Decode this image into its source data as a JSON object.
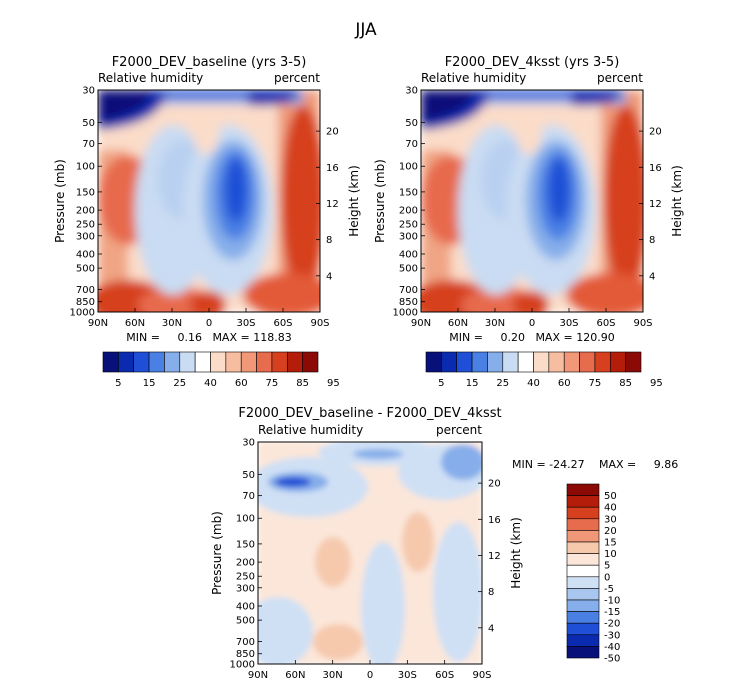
{
  "figure": {
    "title": "JJA"
  },
  "colors": {
    "abs_scale": [
      "#08107a",
      "#0a2bb0",
      "#1f4fd6",
      "#4a7fe4",
      "#86aeea",
      "#c9dcf3",
      "#ffffff",
      "#fbdcc9",
      "#f6bda1",
      "#f09878",
      "#e76b4d",
      "#d6401f",
      "#b31d0a",
      "#8b0a05"
    ],
    "diff_scale": [
      "#08107a",
      "#0a2bb0",
      "#1f4fd6",
      "#4a7fe4",
      "#86aeea",
      "#a9c6ef",
      "#cfe0f5",
      "#ffffff",
      "#fbe6d9",
      "#f6c9ad",
      "#f09878",
      "#e76b4d",
      "#d6401f",
      "#b31d0a",
      "#8b0a05"
    ]
  },
  "chart_data": [
    {
      "type": "heatmap",
      "title": "F2000_DEV_baseline (yrs 3-5)",
      "subtitle_left": "Relative humidity",
      "subtitle_right": "percent",
      "ylabel": "Pressure (mb)",
      "ylabel_right": "Height (km)",
      "xticks": [
        "90N",
        "60N",
        "30N",
        "0",
        "30S",
        "60S",
        "90S"
      ],
      "yticks": [
        "30",
        "50",
        "70",
        "100",
        "150",
        "200",
        "250",
        "300",
        "400",
        "500",
        "700",
        "850",
        "1000"
      ],
      "yticks_right": [
        "20",
        "16",
        "12",
        "8",
        "4"
      ],
      "stats_text": "MIN =     0.16   MAX = 118.83",
      "legend_labels": [
        "5",
        "15",
        "25",
        "40",
        "60",
        "75",
        "85",
        "95"
      ]
    },
    {
      "type": "heatmap",
      "title": "F2000_DEV_4ksst (yrs 3-5)",
      "subtitle_left": "Relative humidity",
      "subtitle_right": "percent",
      "ylabel": "Pressure (mb)",
      "ylabel_right": "Height (km)",
      "xticks": [
        "90N",
        "60N",
        "30N",
        "0",
        "30S",
        "60S",
        "90S"
      ],
      "yticks": [
        "30",
        "50",
        "70",
        "100",
        "150",
        "200",
        "250",
        "300",
        "400",
        "500",
        "700",
        "850",
        "1000"
      ],
      "yticks_right": [
        "20",
        "16",
        "12",
        "8",
        "4"
      ],
      "stats_text": "MIN =     0.20   MAX = 120.90",
      "legend_labels": [
        "5",
        "15",
        "25",
        "40",
        "60",
        "75",
        "85",
        "95"
      ]
    },
    {
      "type": "heatmap",
      "title": "F2000_DEV_baseline - F2000_DEV_4ksst",
      "subtitle_left": "Relative humidity",
      "subtitle_right": "percent",
      "ylabel": "Pressure (mb)",
      "ylabel_right": "Height (km)",
      "xticks": [
        "90N",
        "60N",
        "30N",
        "0",
        "30S",
        "60S",
        "90S"
      ],
      "yticks": [
        "30",
        "50",
        "70",
        "100",
        "150",
        "200",
        "250",
        "300",
        "400",
        "500",
        "700",
        "850",
        "1000"
      ],
      "yticks_right": [
        "20",
        "16",
        "12",
        "8",
        "4"
      ],
      "stats_min": "MIN = -24.27",
      "stats_max": "MAX =     9.86",
      "legend_labels": [
        "50",
        "40",
        "30",
        "20",
        "15",
        "10",
        "5",
        "0",
        "-5",
        "-10",
        "-15",
        "-20",
        "-30",
        "-40",
        "-50"
      ]
    }
  ]
}
